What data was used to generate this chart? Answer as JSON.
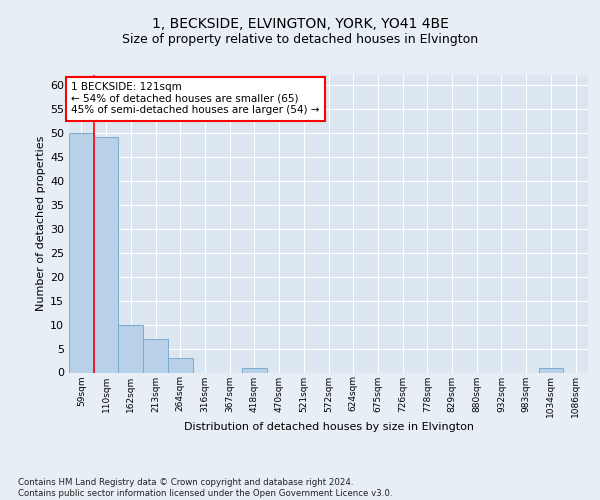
{
  "title1": "1, BECKSIDE, ELVINGTON, YORK, YO41 4BE",
  "title2": "Size of property relative to detached houses in Elvington",
  "xlabel": "Distribution of detached houses by size in Elvington",
  "ylabel": "Number of detached properties",
  "bins": [
    "59sqm",
    "110sqm",
    "162sqm",
    "213sqm",
    "264sqm",
    "316sqm",
    "367sqm",
    "418sqm",
    "470sqm",
    "521sqm",
    "572sqm",
    "624sqm",
    "675sqm",
    "726sqm",
    "778sqm",
    "829sqm",
    "880sqm",
    "932sqm",
    "983sqm",
    "1034sqm",
    "1086sqm"
  ],
  "counts": [
    50,
    49,
    10,
    7,
    3,
    0,
    0,
    1,
    0,
    0,
    0,
    0,
    0,
    0,
    0,
    0,
    0,
    0,
    0,
    1,
    0
  ],
  "bar_color": "#b8d0e8",
  "bar_edge_color": "#7aaccc",
  "red_line_x": 1.0,
  "annotation_text": "1 BECKSIDE: 121sqm\n← 54% of detached houses are smaller (65)\n45% of semi-detached houses are larger (54) →",
  "ylim": [
    0,
    62
  ],
  "yticks": [
    0,
    5,
    10,
    15,
    20,
    25,
    30,
    35,
    40,
    45,
    50,
    55,
    60
  ],
  "footer": "Contains HM Land Registry data © Crown copyright and database right 2024.\nContains public sector information licensed under the Open Government Licence v3.0.",
  "bg_color": "#e8eef5",
  "plot_bg_color": "#dce6f0",
  "title1_fontsize": 10,
  "title2_fontsize": 9
}
